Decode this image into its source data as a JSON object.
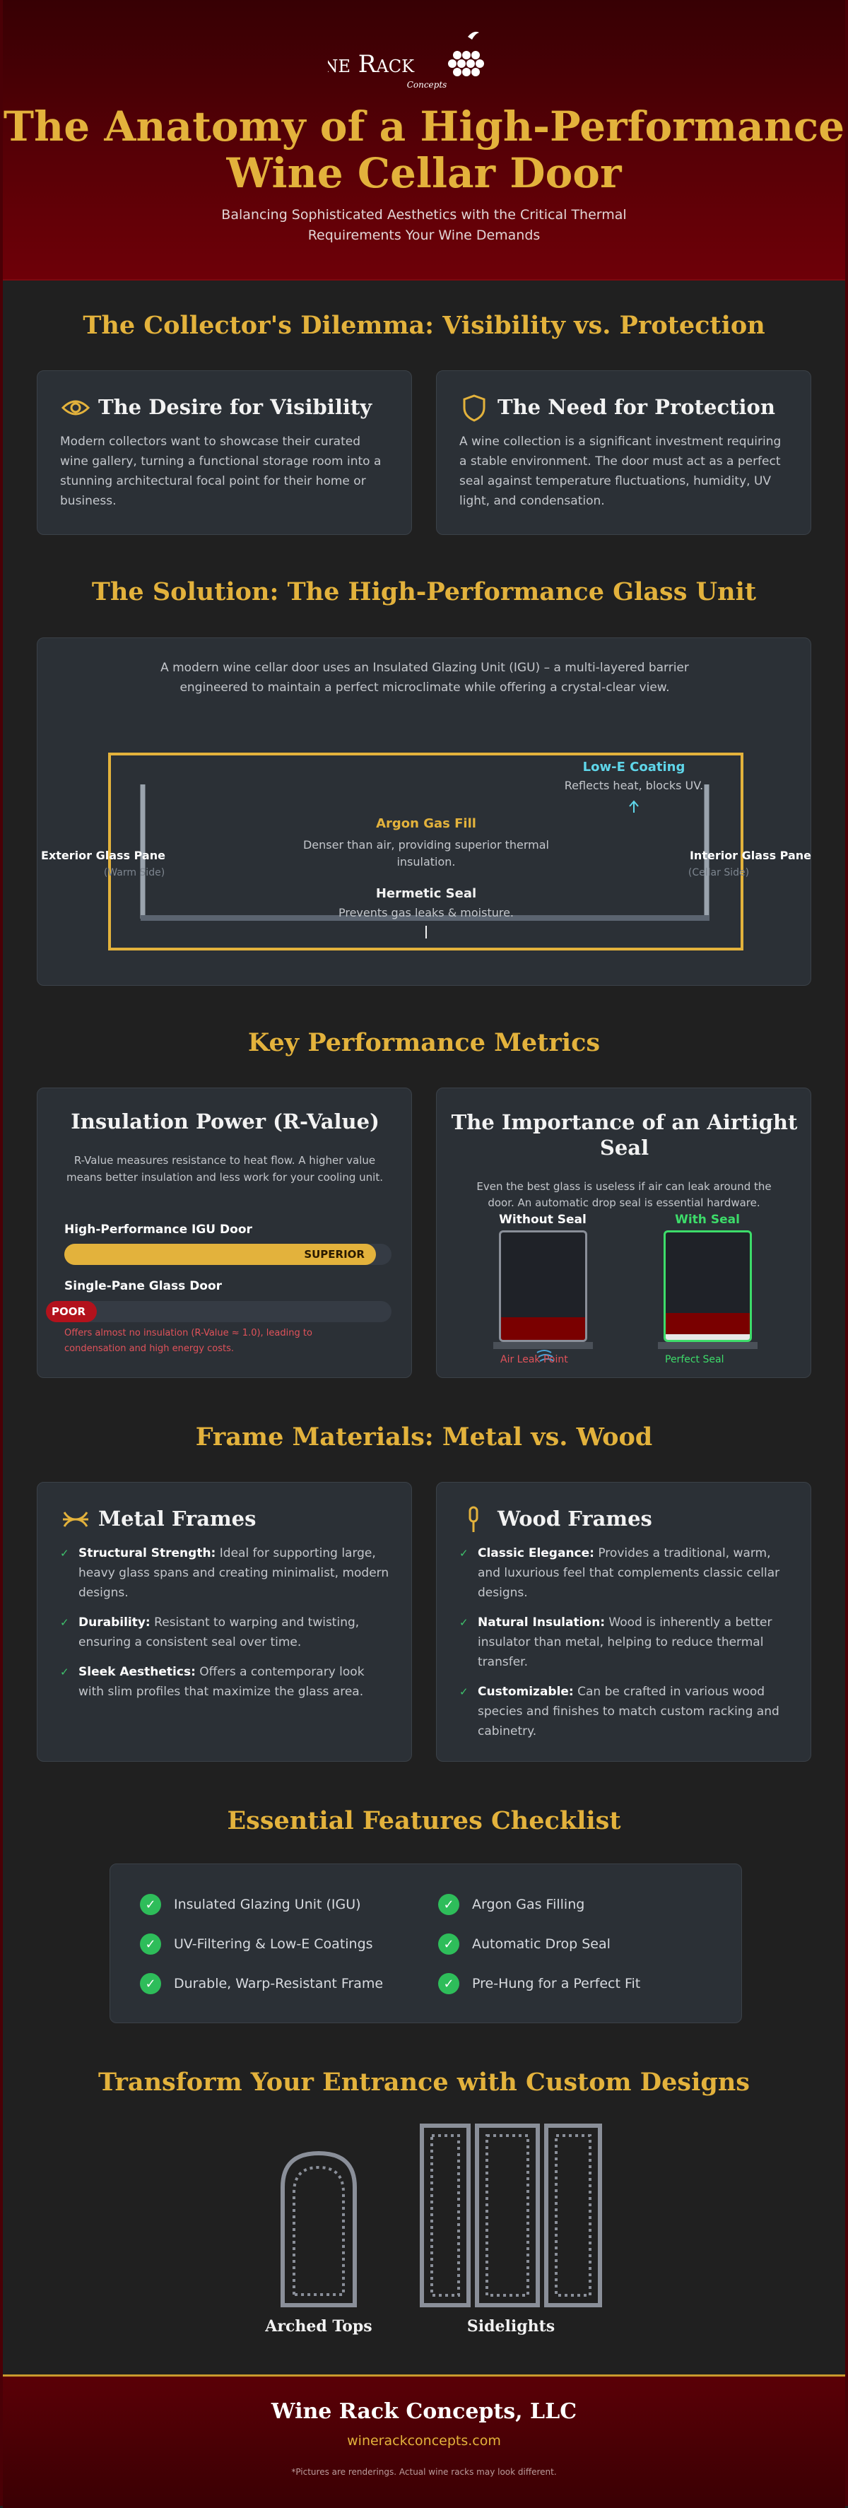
{
  "header": {
    "logo_name": "Wine Rack",
    "logo_tagline": "Concepts",
    "title": "The Anatomy of a High-Performance Wine Cellar Door",
    "subtitle": "Balancing Sophisticated Aesthetics with the Critical Thermal Requirements Your Wine Demands"
  },
  "dilemma": {
    "title": "The Collector's Dilemma: Visibility vs. Protection",
    "cards": [
      {
        "title": "The Desire for Visibility",
        "text": "Modern collectors want to showcase their curated wine gallery, turning a functional storage room into a stunning architectural focal point for their home or business."
      },
      {
        "title": "The Need for Protection",
        "text": "A wine collection is a significant investment requiring a stable environment. The door must act as a perfect seal against temperature fluctuations, humidity, UV light, and condensation."
      }
    ]
  },
  "solution": {
    "title": "The Solution: The High-Performance Glass Unit",
    "intro": "A modern wine cellar door uses an Insulated Glazing Unit (IGU) – a multi-layered barrier engineered to maintain a perfect microclimate while offering a crystal-clear view.",
    "diagram": {
      "low_e_title": "Low-E Coating",
      "low_e_text": "Reflects heat, blocks UV.",
      "argon_title": "Argon Gas Fill",
      "argon_text": "Denser than air, providing superior thermal insulation.",
      "seal_title": "Hermetic Seal",
      "seal_text": "Prevents gas leaks & moisture.",
      "exterior_title": "Exterior Glass Pane",
      "exterior_text": "(Warm Side)",
      "interior_title": "Interior Glass Pane",
      "interior_text": "(Cellar Side)"
    }
  },
  "metrics": {
    "title": "Key Performance Metrics",
    "insulation": {
      "title": "Insulation Power (R-Value)",
      "text": "R-Value measures resistance to heat flow. A higher value means better insulation and less work for your cooling unit.",
      "bars": [
        {
          "label": "High-Performance IGU Door",
          "rating": "SUPERIOR"
        },
        {
          "label": "Single-Pane Glass Door",
          "rating": "POOR"
        }
      ],
      "note": "Offers almost no insulation (R-Value ≈ 1.0), leading to condensation and high energy costs."
    },
    "airtight": {
      "title": "The Importance of an Airtight Seal",
      "text": "Even the best glass is useless if air can leak around the door. An automatic drop seal is essential hardware.",
      "doors": [
        {
          "label": "Without Seal",
          "caption": "Air Leak Point"
        },
        {
          "label": "With Seal",
          "caption": "Perfect Seal"
        }
      ]
    }
  },
  "frames": {
    "title": "Frame Materials: Metal vs. Wood",
    "cards": [
      {
        "title": "Metal Frames",
        "items": [
          {
            "term": "Structural Strength:",
            "text": "Ideal for supporting large, heavy glass spans and creating minimalist, modern designs."
          },
          {
            "term": "Durability:",
            "text": "Resistant to warping and twisting, ensuring a consistent seal over time."
          },
          {
            "term": "Sleek Aesthetics:",
            "text": "Offers a contemporary look with slim profiles that maximize the glass area."
          }
        ]
      },
      {
        "title": "Wood Frames",
        "items": [
          {
            "term": "Classic Elegance:",
            "text": "Provides a traditional, warm, and luxurious feel that complements classic cellar designs."
          },
          {
            "term": "Natural Insulation:",
            "text": "Wood is inherently a better insulator than metal, helping to reduce thermal transfer."
          },
          {
            "term": "Customizable:",
            "text": "Can be crafted in various wood species and finishes to match custom racking and cabinetry."
          }
        ]
      }
    ]
  },
  "checklist": {
    "title": "Essential Features Checklist",
    "items": [
      "Insulated Glazing Unit (IGU)",
      "Argon Gas Filling",
      "UV-Filtering & Low-E Coatings",
      "Automatic Drop Seal",
      "Durable, Warp-Resistant Frame",
      "Pre-Hung for a Perfect Fit"
    ]
  },
  "designs": {
    "title": "Transform Your Entrance with Custom Designs",
    "items": [
      "Arched Tops",
      "Sidelights"
    ]
  },
  "footer": {
    "company": "Wine Rack Concepts, LLC",
    "website": "winerackconcepts.com",
    "disclaimer": "*Pictures are renderings. Actual wine racks may look different."
  }
}
